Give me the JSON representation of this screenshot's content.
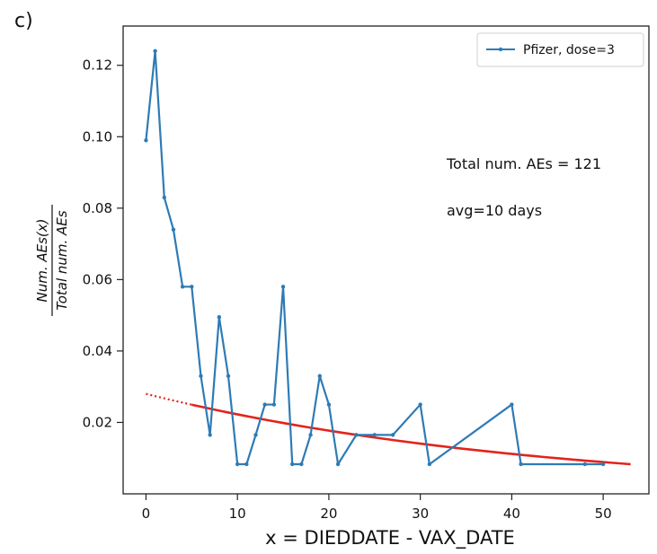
{
  "panel_label": "c)",
  "chart_data": {
    "type": "line",
    "xlabel": "x =  DIEDDATE - VAX_DATE",
    "ylabel_numerator": "Num. AEs(x)",
    "ylabel_denominator": "Total num. AEs",
    "xlim": [
      -2.5,
      55
    ],
    "ylim": [
      0.0,
      0.131
    ],
    "x_ticks": [
      0,
      10,
      20,
      30,
      40,
      50
    ],
    "y_ticks": [
      0.02,
      0.04,
      0.06,
      0.08,
      0.1,
      0.12
    ],
    "y_tick_labels": [
      "0.02",
      "0.04",
      "0.06",
      "0.08",
      "0.10",
      "0.12"
    ],
    "grid": false,
    "legend_position": "top-right",
    "series": [
      {
        "name": "Pfizer, dose=3",
        "color": "#2e7bb5",
        "marker": "dot",
        "x": [
          0,
          1,
          2,
          3,
          4,
          5,
          6,
          7,
          8,
          9,
          10,
          11,
          12,
          13,
          14,
          15,
          16,
          17,
          18,
          19,
          20,
          21,
          23,
          25,
          27,
          30,
          31,
          40,
          41,
          48,
          50
        ],
        "y": [
          0.099,
          0.124,
          0.083,
          0.074,
          0.058,
          0.058,
          0.033,
          0.0165,
          0.0495,
          0.033,
          0.0083,
          0.0083,
          0.0165,
          0.025,
          0.025,
          0.058,
          0.0083,
          0.0083,
          0.0165,
          0.033,
          0.025,
          0.0083,
          0.0165,
          0.0165,
          0.0165,
          0.025,
          0.0083,
          0.025,
          0.0083,
          0.0083,
          0.0083
        ]
      }
    ],
    "fit": {
      "color": "#e3231c",
      "model": "exponential",
      "x_start_dotted": 0,
      "x_start_solid": 5,
      "x_end": 53,
      "y_at_x0": 0.028,
      "y_at_x_end": 0.0083
    },
    "annotations": [
      {
        "text": "Total num. AEs = 121"
      },
      {
        "text": "avg=10 days"
      }
    ]
  }
}
